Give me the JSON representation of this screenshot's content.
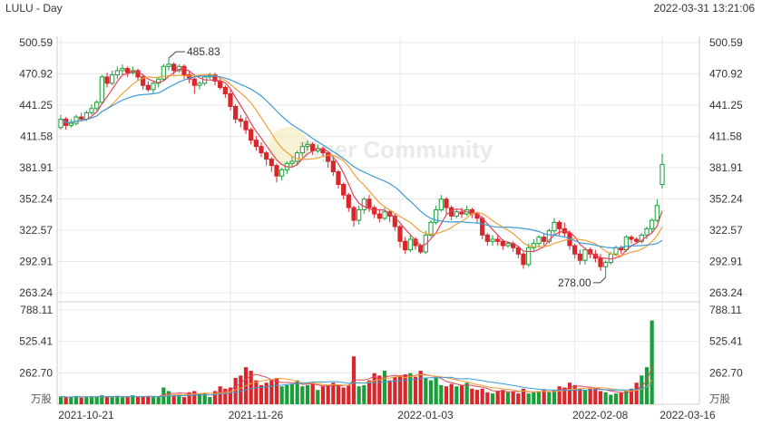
{
  "header": {
    "symbol_period": "LULU - Day",
    "timestamp": "2022-03-31 13:21:06"
  },
  "watermark": "Tiger Community",
  "colors": {
    "up": "#1a9e3a",
    "down": "#d8262a",
    "ma_short": "#e0455a",
    "ma_mid": "#f29f3a",
    "ma_long": "#3d9bd8",
    "grid": "#e9e9e9"
  },
  "chart_data": [
    {
      "type": "candlestick",
      "title": "",
      "price_axis_labels": [
        "500.59",
        "470.92",
        "441.25",
        "411.58",
        "381.91",
        "352.24",
        "322.57",
        "292.91",
        "263.24"
      ],
      "ylim": [
        263.24,
        500.59
      ],
      "x_tick_labels": [
        "2021-10-21",
        "2021-11-26",
        "2022-01-03",
        "2022-02-08",
        "2022-03-16"
      ],
      "annotations": [
        {
          "label": "485.83",
          "value": 485.83
        },
        {
          "label": "278.00",
          "value": 278.0
        }
      ],
      "candles": [
        [
          420,
          428,
          432,
          418
        ],
        [
          428,
          422,
          430,
          418
        ],
        [
          422,
          424,
          428,
          420
        ],
        [
          424,
          430,
          432,
          422
        ],
        [
          430,
          428,
          434,
          426
        ],
        [
          428,
          434,
          436,
          426
        ],
        [
          434,
          438,
          442,
          432
        ],
        [
          438,
          444,
          446,
          436
        ],
        [
          444,
          468,
          470,
          442
        ],
        [
          468,
          462,
          472,
          458
        ],
        [
          462,
          470,
          474,
          460
        ],
        [
          470,
          474,
          478,
          466
        ],
        [
          474,
          476,
          480,
          470
        ],
        [
          476,
          472,
          478,
          468
        ],
        [
          472,
          474,
          478,
          470
        ],
        [
          474,
          468,
          476,
          464
        ],
        [
          468,
          460,
          470,
          456
        ],
        [
          460,
          456,
          464,
          454
        ],
        [
          456,
          462,
          464,
          452
        ],
        [
          462,
          466,
          468,
          458
        ],
        [
          466,
          478,
          480,
          464
        ],
        [
          478,
          480,
          485.83,
          474
        ],
        [
          480,
          474,
          482,
          470
        ],
        [
          474,
          478,
          480,
          472
        ],
        [
          478,
          470,
          480,
          466
        ],
        [
          470,
          466,
          474,
          462
        ],
        [
          466,
          460,
          468,
          452
        ],
        [
          460,
          462,
          464,
          456
        ],
        [
          462,
          468,
          470,
          460
        ],
        [
          468,
          470,
          472,
          466
        ],
        [
          470,
          464,
          472,
          460
        ],
        [
          464,
          458,
          468,
          456
        ],
        [
          458,
          452,
          460,
          448
        ],
        [
          452,
          440,
          456,
          436
        ],
        [
          440,
          428,
          442,
          424
        ],
        [
          428,
          426,
          432,
          420
        ],
        [
          426,
          418,
          430,
          414
        ],
        [
          418,
          408,
          420,
          404
        ],
        [
          408,
          402,
          412,
          398
        ],
        [
          402,
          396,
          406,
          392
        ],
        [
          396,
          390,
          398,
          384
        ],
        [
          390,
          384,
          392,
          378
        ],
        [
          384,
          374,
          386,
          368
        ],
        [
          374,
          380,
          382,
          370
        ],
        [
          380,
          386,
          388,
          376
        ],
        [
          386,
          388,
          392,
          382
        ],
        [
          388,
          396,
          398,
          384
        ],
        [
          396,
          402,
          406,
          392
        ],
        [
          402,
          404,
          408,
          398
        ],
        [
          404,
          398,
          406,
          394
        ],
        [
          398,
          400,
          404,
          396
        ],
        [
          400,
          396,
          402,
          392
        ],
        [
          396,
          388,
          398,
          382
        ],
        [
          388,
          378,
          392,
          374
        ],
        [
          378,
          366,
          380,
          362
        ],
        [
          366,
          356,
          368,
          352
        ],
        [
          356,
          344,
          358,
          340
        ],
        [
          344,
          332,
          346,
          326
        ],
        [
          332,
          342,
          346,
          328
        ],
        [
          342,
          352,
          354,
          338
        ],
        [
          352,
          344,
          356,
          340
        ],
        [
          344,
          338,
          346,
          334
        ],
        [
          338,
          334,
          342,
          330
        ],
        [
          334,
          340,
          344,
          332
        ],
        [
          340,
          336,
          342,
          330
        ],
        [
          336,
          326,
          338,
          322
        ],
        [
          326,
          312,
          328,
          306
        ],
        [
          312,
          304,
          316,
          300
        ],
        [
          304,
          314,
          318,
          302
        ],
        [
          314,
          308,
          316,
          304
        ],
        [
          308,
          302,
          310,
          300
        ],
        [
          302,
          318,
          322,
          300
        ],
        [
          318,
          330,
          332,
          316
        ],
        [
          330,
          342,
          346,
          328
        ],
        [
          342,
          352,
          356,
          340
        ],
        [
          352,
          344,
          354,
          338
        ],
        [
          344,
          336,
          346,
          332
        ],
        [
          336,
          340,
          342,
          334
        ],
        [
          340,
          338,
          344,
          334
        ],
        [
          338,
          342,
          346,
          336
        ],
        [
          342,
          338,
          344,
          334
        ],
        [
          338,
          334,
          340,
          330
        ],
        [
          334,
          318,
          336,
          314
        ],
        [
          318,
          312,
          320,
          308
        ],
        [
          312,
          314,
          318,
          308
        ],
        [
          314,
          312,
          318,
          308
        ],
        [
          312,
          308,
          314,
          304
        ],
        [
          308,
          310,
          312,
          306
        ],
        [
          310,
          306,
          312,
          302
        ],
        [
          306,
          300,
          308,
          296
        ],
        [
          300,
          290,
          302,
          286
        ],
        [
          290,
          306,
          310,
          288
        ],
        [
          306,
          310,
          314,
          302
        ],
        [
          310,
          316,
          318,
          306
        ],
        [
          316,
          312,
          320,
          308
        ],
        [
          312,
          322,
          324,
          310
        ],
        [
          322,
          330,
          334,
          318
        ],
        [
          330,
          324,
          332,
          318
        ],
        [
          324,
          320,
          330,
          316
        ],
        [
          320,
          308,
          322,
          304
        ],
        [
          308,
          300,
          310,
          296
        ],
        [
          300,
          294,
          304,
          290
        ],
        [
          294,
          304,
          306,
          290
        ],
        [
          304,
          300,
          306,
          296
        ],
        [
          300,
          296,
          304,
          292
        ],
        [
          296,
          288,
          300,
          284
        ],
        [
          288,
          292,
          294,
          278
        ],
        [
          292,
          300,
          302,
          290
        ],
        [
          300,
          306,
          308,
          298
        ],
        [
          306,
          304,
          308,
          300
        ],
        [
          304,
          316,
          318,
          302
        ],
        [
          316,
          314,
          318,
          310
        ],
        [
          314,
          312,
          316,
          310
        ],
        [
          312,
          318,
          320,
          310
        ],
        [
          318,
          324,
          326,
          314
        ],
        [
          324,
          332,
          334,
          320
        ],
        [
          332,
          346,
          352,
          330
        ],
        [
          366,
          385,
          395,
          362
        ]
      ],
      "volume_axis_labels": [
        "788.11",
        "525.41",
        "262.70"
      ],
      "volume_unit": "万股",
      "vmax": 788.11,
      "volume": [
        65,
        58,
        60,
        70,
        55,
        60,
        65,
        60,
        75,
        62,
        60,
        70,
        58,
        60,
        75,
        60,
        65,
        68,
        60,
        65,
        140,
        110,
        75,
        80,
        60,
        100,
        110,
        90,
        95,
        60,
        110,
        150,
        130,
        140,
        220,
        240,
        310,
        280,
        200,
        160,
        180,
        200,
        220,
        150,
        160,
        170,
        200,
        150,
        160,
        180,
        120,
        150,
        160,
        180,
        160,
        140,
        160,
        400,
        150,
        160,
        200,
        260,
        240,
        280,
        200,
        230,
        240,
        250,
        260,
        230,
        280,
        220,
        200,
        220,
        160,
        150,
        170,
        150,
        160,
        180,
        130,
        120,
        130,
        100,
        90,
        110,
        120,
        100,
        110,
        90,
        130,
        90,
        100,
        110,
        120,
        100,
        120,
        150,
        140,
        180,
        160,
        130,
        120,
        130,
        140,
        110,
        100,
        80,
        90,
        100,
        110,
        130,
        180,
        240,
        310,
        700
      ]
    }
  ]
}
